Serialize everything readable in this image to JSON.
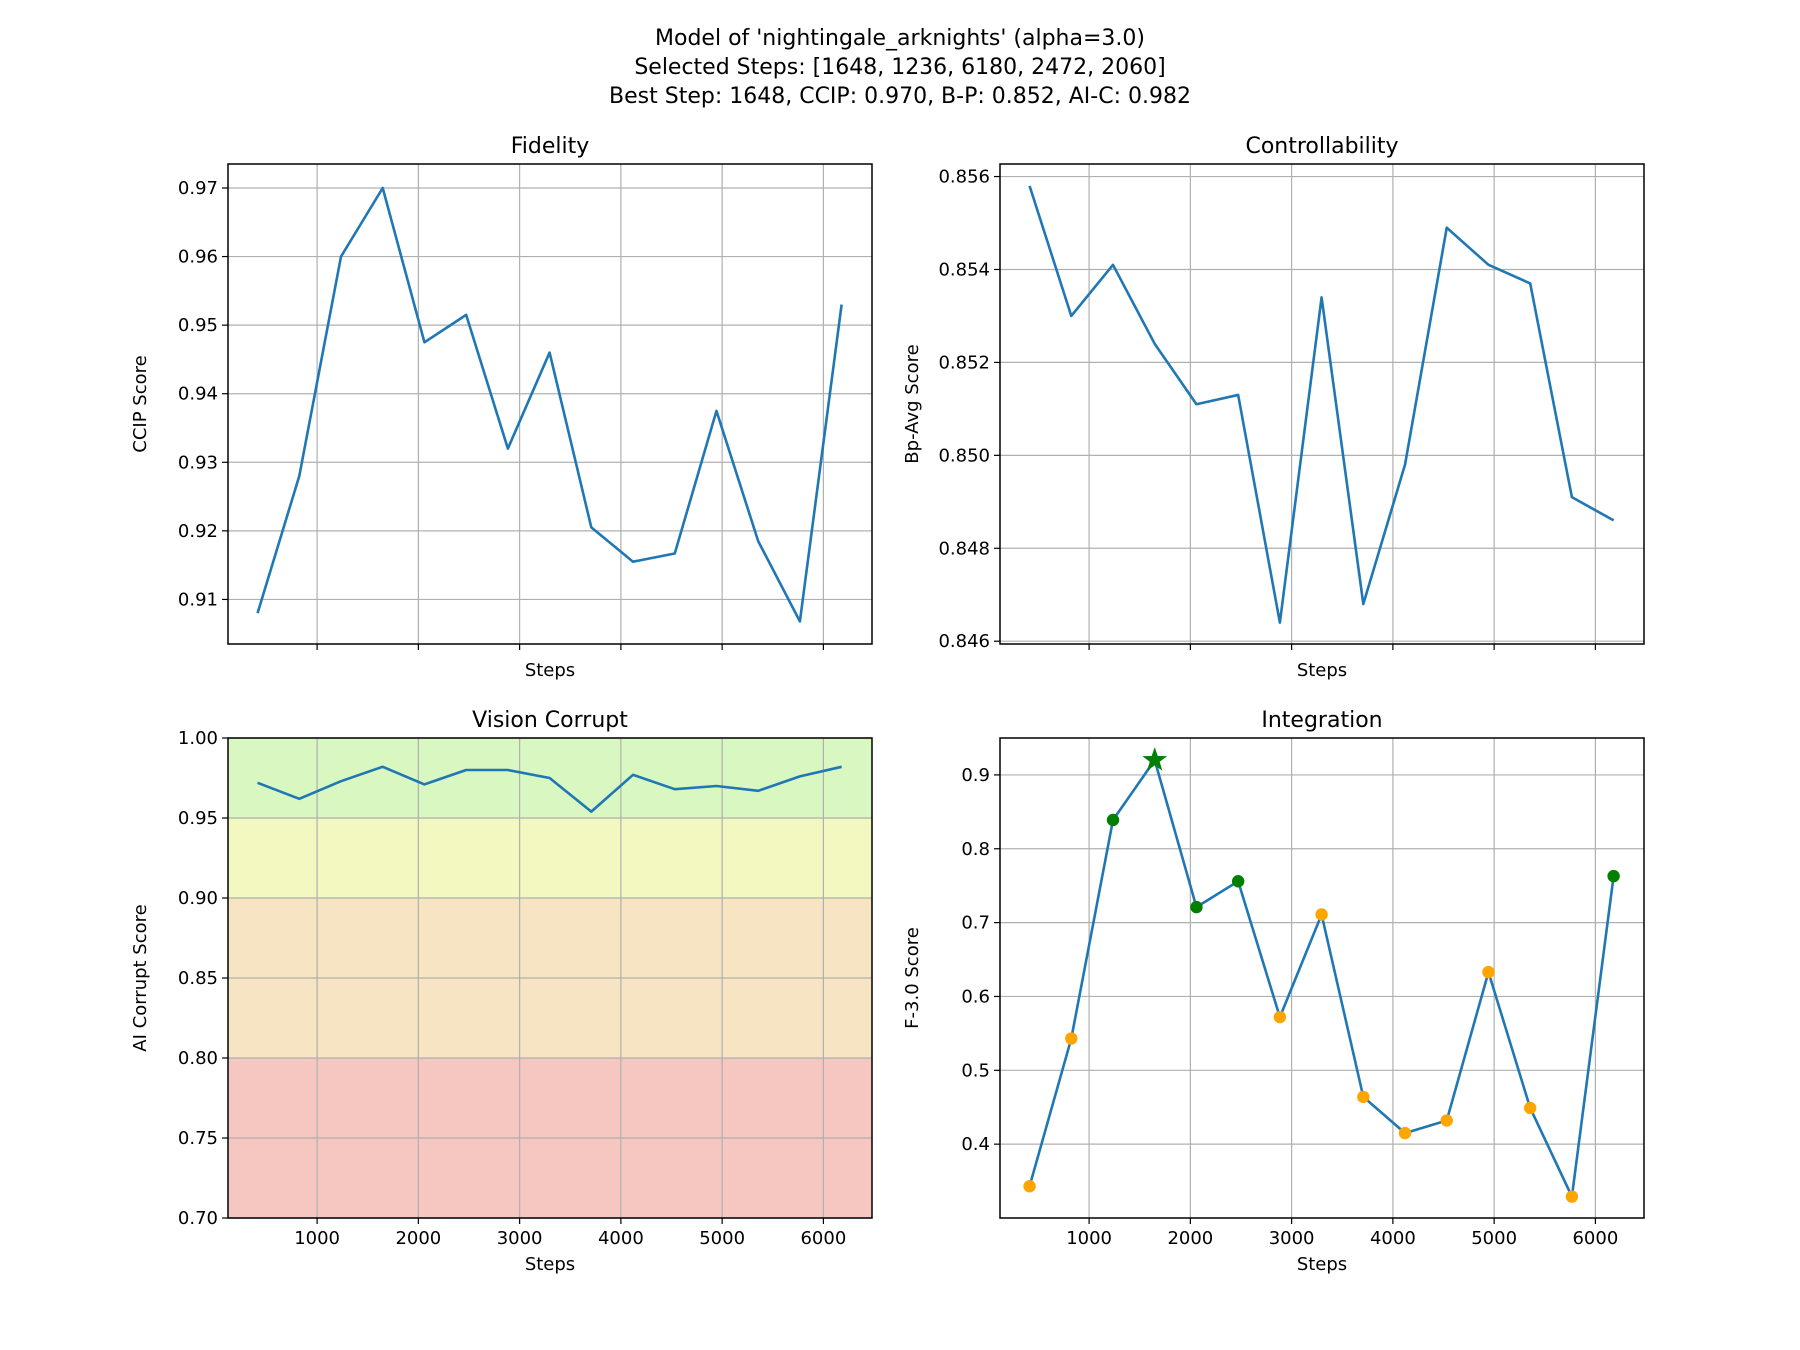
{
  "figure": {
    "title_lines": [
      "Model of 'nightingale_arknights' (alpha=3.0)",
      "Selected Steps: [1648, 1236, 6180, 2472, 2060]",
      "Best Step: 1648, CCIP: 0.970, B-P: 0.852, AI-C: 0.982"
    ]
  },
  "colors": {
    "line": "#1f77b4",
    "selected_point": "#008000",
    "other_point": "#ffa500",
    "best_marker": "#008000",
    "band_green": "#d9f7c0",
    "band_yellow": "#f3f7c0",
    "band_orange": "#f6e4c3",
    "band_red": "#f6c7c1"
  },
  "chart_data": [
    {
      "id": "fidelity",
      "type": "line",
      "title": "Fidelity",
      "xlabel": "Steps",
      "ylabel": "CCIP Score",
      "xlim": [
        120,
        6480
      ],
      "ylim": [
        0.9035,
        0.9735
      ],
      "xticks": [
        1000,
        2000,
        3000,
        4000,
        5000,
        6000
      ],
      "show_xtick_labels": false,
      "yticks": [
        0.91,
        0.92,
        0.93,
        0.94,
        0.95,
        0.96,
        0.97
      ],
      "ytick_labels": [
        "0.91",
        "0.92",
        "0.93",
        "0.94",
        "0.95",
        "0.96",
        "0.97"
      ],
      "grid": true,
      "x": [
        412,
        824,
        1236,
        1648,
        2060,
        2472,
        2884,
        3296,
        3708,
        4120,
        4532,
        4944,
        5356,
        5768,
        6180
      ],
      "y": [
        0.908,
        0.928,
        0.96,
        0.97,
        0.9475,
        0.9515,
        0.932,
        0.946,
        0.9205,
        0.9155,
        0.9167,
        0.9375,
        0.9185,
        0.9068,
        0.953
      ]
    },
    {
      "id": "controllability",
      "type": "line",
      "title": "Controllability",
      "xlabel": "Steps",
      "ylabel": "Bp-Avg Score",
      "xlim": [
        120,
        6480
      ],
      "ylim": [
        0.84594,
        0.85627
      ],
      "xticks": [
        1000,
        2000,
        3000,
        4000,
        5000,
        6000
      ],
      "show_xtick_labels": false,
      "yticks": [
        0.846,
        0.848,
        0.85,
        0.852,
        0.854,
        0.856
      ],
      "ytick_labels": [
        "0.846",
        "0.848",
        "0.850",
        "0.852",
        "0.854",
        "0.856"
      ],
      "grid": true,
      "x": [
        412,
        824,
        1236,
        1648,
        2060,
        2472,
        2884,
        3296,
        3708,
        4120,
        4532,
        4944,
        5356,
        5768,
        6180
      ],
      "y": [
        0.8558,
        0.853,
        0.8541,
        0.8524,
        0.8511,
        0.8513,
        0.8464,
        0.8534,
        0.8468,
        0.8498,
        0.8549,
        0.8541,
        0.8537,
        0.8491,
        0.8486
      ]
    },
    {
      "id": "vision_corrupt",
      "type": "line",
      "title": "Vision Corrupt",
      "xlabel": "Steps",
      "ylabel": "AI Corrupt Score",
      "xlim": [
        120,
        6480
      ],
      "ylim": [
        0.7,
        1.0
      ],
      "xticks": [
        1000,
        2000,
        3000,
        4000,
        5000,
        6000
      ],
      "xtick_labels": [
        "1000",
        "2000",
        "3000",
        "4000",
        "5000",
        "6000"
      ],
      "show_xtick_labels": true,
      "yticks": [
        0.7,
        0.75,
        0.8,
        0.85,
        0.9,
        0.95,
        1.0
      ],
      "ytick_labels": [
        "0.70",
        "0.75",
        "0.80",
        "0.85",
        "0.90",
        "0.95",
        "1.00"
      ],
      "grid": true,
      "bands": [
        {
          "from": 0.95,
          "to": 1.0,
          "color_key": "band_green"
        },
        {
          "from": 0.9,
          "to": 0.95,
          "color_key": "band_yellow"
        },
        {
          "from": 0.8,
          "to": 0.9,
          "color_key": "band_orange"
        },
        {
          "from": 0.7,
          "to": 0.8,
          "color_key": "band_red"
        }
      ],
      "x": [
        412,
        824,
        1236,
        1648,
        2060,
        2472,
        2884,
        3296,
        3708,
        4120,
        4532,
        4944,
        5356,
        5768,
        6180
      ],
      "y": [
        0.972,
        0.962,
        0.973,
        0.982,
        0.971,
        0.98,
        0.98,
        0.975,
        0.954,
        0.977,
        0.968,
        0.97,
        0.967,
        0.976,
        0.982
      ]
    },
    {
      "id": "integration",
      "type": "line",
      "title": "Integration",
      "xlabel": "Steps",
      "ylabel": "F-3.0 Score",
      "xlim": [
        120,
        6480
      ],
      "ylim": [
        0.3,
        0.95
      ],
      "xticks": [
        1000,
        2000,
        3000,
        4000,
        5000,
        6000
      ],
      "xtick_labels": [
        "1000",
        "2000",
        "3000",
        "4000",
        "5000",
        "6000"
      ],
      "show_xtick_labels": true,
      "yticks": [
        0.4,
        0.5,
        0.6,
        0.7,
        0.8,
        0.9
      ],
      "ytick_labels": [
        "0.4",
        "0.5",
        "0.6",
        "0.7",
        "0.8",
        "0.9"
      ],
      "grid": true,
      "x": [
        412,
        824,
        1236,
        1648,
        2060,
        2472,
        2884,
        3296,
        3708,
        4120,
        4532,
        4944,
        5356,
        5768,
        6180
      ],
      "y": [
        0.343,
        0.543,
        0.839,
        0.92,
        0.721,
        0.756,
        0.572,
        0.711,
        0.464,
        0.415,
        0.432,
        0.633,
        0.449,
        0.329,
        0.763
      ],
      "selected_steps": [
        1236,
        2060,
        2472,
        6180
      ],
      "best_step": 1648
    }
  ]
}
